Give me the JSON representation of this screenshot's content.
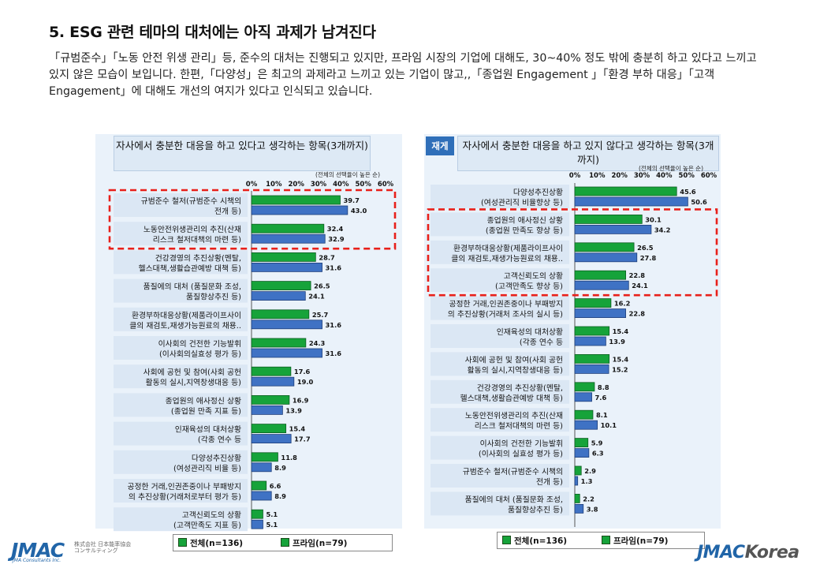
{
  "page": {
    "title": "5. ESG 관련 테마의 대처에는 아직 과제가 남겨진다",
    "intro": "「규범준수」「노동 안전 위생 관리」등, 준수의 대처는 진행되고 있지만, 프라임 시장의 기업에 대해도, 30~40% 정도 밖에 충분히 하고 있다고 느끼고 있지 않은 모습이 보입니다. 한편,「다양성」은 최고의 과제라고 느끼고 있는 기업이 많고,,「종업원 Engagement 」「환경 부하 대응」「고객 Engagement」에 대해도 개선의 여지가 있다고 인식되고 있습니다."
  },
  "left_panel": {
    "header": "자사에서 충분한 대응을 하고 있다고 생각하는 항목(3개까지)",
    "note": "(전체의 선택율이 높은 순)"
  },
  "right_panel": {
    "badge": "재게",
    "header": "자사에서 충분한 대응을 하고 있지 않다고 생각하는 항목(3개까지)",
    "note": "(전체의 선택율이 높은 순)"
  },
  "legend": {
    "all_label": "전체(n=136)",
    "prime_label": "프라임(n=79)"
  },
  "logos": {
    "left_mark": "JMAC",
    "left_sub": "株式会社 日本能率協会 コンサルティング",
    "left_small": "JMA Consultants Inc.",
    "right_a": "JMAC",
    "right_b": "Korea"
  },
  "colors": {
    "green": "#16a33a",
    "blue": "#3f72c4",
    "highlight": "#e8201a",
    "label_box": "#dbe7f4"
  },
  "chart_data": [
    {
      "type": "bar",
      "orientation": "horizontal",
      "title": "자사에서 충분한 대응을 하고 있다고 생각하는 항목(3개까지)",
      "xlim": [
        0,
        60
      ],
      "ticks": [
        "0%",
        "10%",
        "20%",
        "30%",
        "40%",
        "50%",
        "60%"
      ],
      "categories": [
        [
          "규범준수 철저(규범준수 시책의",
          "전개 등)"
        ],
        [
          "노동안전위생관리의 추진(산재",
          "리스크 철저대책의 마련 등)"
        ],
        [
          "건강경영의 추진상황(멘탈,",
          "헬스대책,생활습관예방 대책 등)"
        ],
        [
          "품질에의 대처 (품질문화 조성,",
          "품질향상추진 등)"
        ],
        [
          "환경부하대응상황(제품라이프사이",
          "클의 재검토,재생가능원료의 채용.."
        ],
        [
          "이사회의 건전한 기능발휘",
          "(이사회의실효성 평가 등)"
        ],
        [
          "사회에 공헌 및 참여(사회 공헌",
          "활동의 실시,지역창생대응 등)"
        ],
        [
          "종업원의 애사정신 상황",
          "(종업원 만족 지표 등)"
        ],
        [
          "인재육성의 대처상황",
          "(각종 연수 등"
        ],
        [
          "다양성추진상황",
          "(여성관리직 비율 등)"
        ],
        [
          "공정한 거래,인권존중이나 부패방지",
          "의 추진상황(거래처로부터 평가 등)"
        ],
        [
          "고객신뢰도의 상황",
          "(고객만족도 지표 등)"
        ]
      ],
      "series": [
        {
          "name": "전체(n=136)",
          "values": [
            39.7,
            32.4,
            28.7,
            26.5,
            25.7,
            24.3,
            17.6,
            16.9,
            15.4,
            11.8,
            6.6,
            5.1
          ]
        },
        {
          "name": "프라임(n=79)",
          "values": [
            43.0,
            32.9,
            31.6,
            24.1,
            31.6,
            31.6,
            19.0,
            13.9,
            17.7,
            8.9,
            8.9,
            5.1
          ]
        }
      ],
      "highlighted_categories": [
        0,
        1
      ]
    },
    {
      "type": "bar",
      "orientation": "horizontal",
      "title": "자사에서 충분한 대응을 하고 있지 않다고 생각하는 항목(3개까지)",
      "xlim": [
        0,
        60
      ],
      "ticks": [
        "0%",
        "10%",
        "20%",
        "30%",
        "40%",
        "50%",
        "60%"
      ],
      "categories": [
        [
          "다양성추진상황",
          "(여성관리직 비율향상 등)"
        ],
        [
          "종업원의 애사정신 상황",
          "(종업원 만족도 향상 등)"
        ],
        [
          "환경부하대응상황(제품라이프사이",
          "클의 재검토,재생가능원료의 채용.."
        ],
        [
          "고객신뢰도의 상황",
          "(고객만족도 향상 등)"
        ],
        [
          "공정한 거래,인권존중이나 부패방지",
          "의 추진상황(거래처 조사의 실시 등)"
        ],
        [
          "인재육성의 대처상황",
          "(각종 연수 등"
        ],
        [
          "사회에 공헌 및 참여(사회 공헌",
          "활동의 실시,지역창생대응 등)"
        ],
        [
          "건강경영의 추진상황(멘탈,",
          "헬스대책,생활습관예방 대책 등)"
        ],
        [
          "노동안전위생관리의 추진(산재",
          "리스크 철저대책의 마련 등)"
        ],
        [
          "이사회의 건전한 기능발휘",
          "(이사회의 실효성 평가 등)"
        ],
        [
          "규범준수 철저(규범준수 시책의",
          "전개 등)"
        ],
        [
          "품질에의 대처 (품질문화 조성,",
          "품질향상추진 등)"
        ]
      ],
      "series": [
        {
          "name": "전체(n=136)",
          "values": [
            45.6,
            30.1,
            26.5,
            22.8,
            16.2,
            15.4,
            15.4,
            8.8,
            8.1,
            5.9,
            2.9,
            2.2
          ]
        },
        {
          "name": "프라임(n=79)",
          "values": [
            50.6,
            34.2,
            27.8,
            24.1,
            22.8,
            13.9,
            15.2,
            7.6,
            10.1,
            6.3,
            1.3,
            3.8
          ]
        }
      ],
      "highlighted_categories": [
        1,
        2,
        3
      ]
    }
  ]
}
